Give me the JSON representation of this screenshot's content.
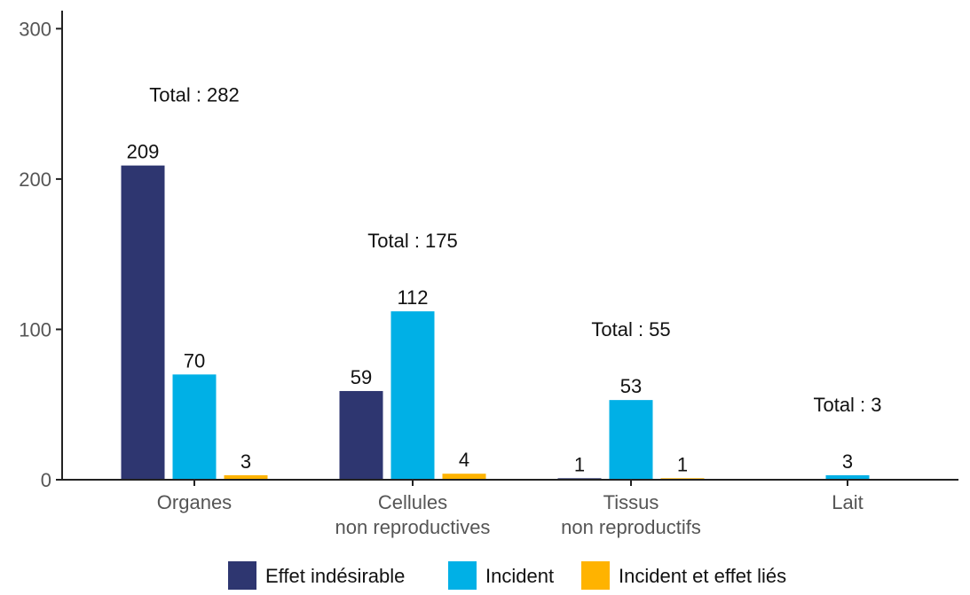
{
  "chart_data": {
    "type": "bar",
    "categories": [
      [
        "Organes"
      ],
      [
        "Cellules",
        "non reproductives"
      ],
      [
        "Tissus",
        "non reproductifs"
      ],
      [
        "Lait"
      ]
    ],
    "series": [
      {
        "name": "Effet indésirable",
        "color": "#2e3670",
        "values": [
          209,
          59,
          1,
          0
        ],
        "labels": [
          "209",
          "59",
          "1",
          ""
        ]
      },
      {
        "name": "Incident",
        "color": "#00b0e6",
        "values": [
          70,
          112,
          53,
          3
        ],
        "labels": [
          "70",
          "112",
          "53",
          "3"
        ]
      },
      {
        "name": "Incident et effet liés",
        "color": "#ffb300",
        "values": [
          3,
          4,
          1,
          0
        ],
        "labels": [
          "3",
          "4",
          "1",
          ""
        ]
      }
    ],
    "totals": [
      "Total : 282",
      "Total : 175",
      "Total : 55",
      "Total : 3"
    ],
    "yticks": [
      "0",
      "100",
      "200",
      "300"
    ],
    "ylim": [
      0,
      312
    ],
    "legend_position": "bottom"
  }
}
